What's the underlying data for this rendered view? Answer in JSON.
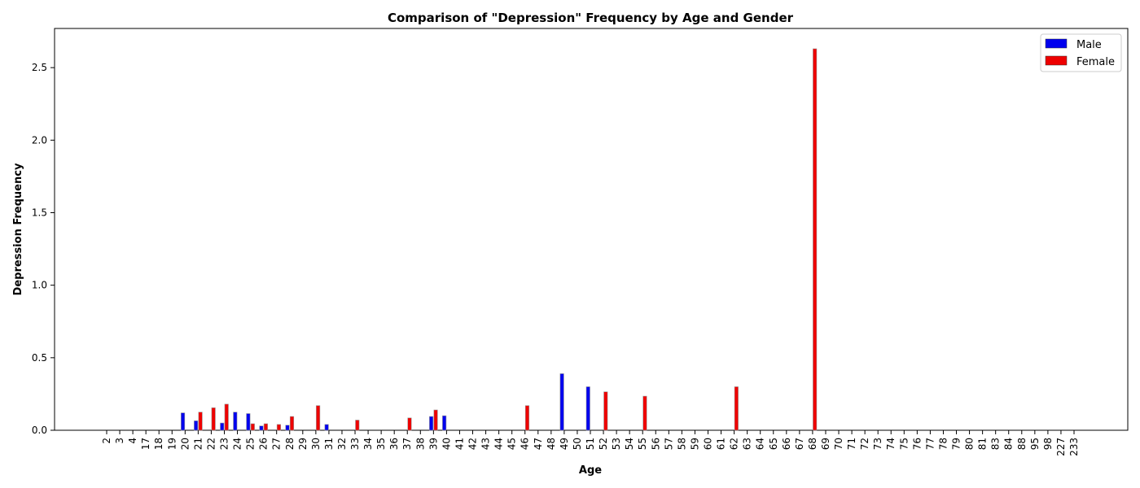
{
  "chart_data": {
    "type": "bar",
    "title": "Comparison of \"Depression\" Frequency by Age and Gender",
    "xlabel": "Age",
    "ylabel": "Depression Frequency",
    "ylim": [
      0,
      2.77
    ],
    "yticks": [
      "0.0",
      "0.5",
      "1.0",
      "1.5",
      "2.0",
      "2.5"
    ],
    "grid": false,
    "legend_position": "top-right",
    "categories": [
      "2",
      "3",
      "4",
      "17",
      "18",
      "19",
      "20",
      "21",
      "22",
      "23",
      "24",
      "25",
      "26",
      "27",
      "28",
      "29",
      "30",
      "31",
      "32",
      "33",
      "34",
      "35",
      "36",
      "37",
      "38",
      "39",
      "40",
      "41",
      "42",
      "43",
      "44",
      "45",
      "46",
      "47",
      "48",
      "49",
      "50",
      "51",
      "52",
      "53",
      "54",
      "55",
      "56",
      "57",
      "58",
      "59",
      "60",
      "61",
      "62",
      "63",
      "64",
      "65",
      "66",
      "67",
      "68",
      "69",
      "70",
      "71",
      "72",
      "73",
      "74",
      "75",
      "76",
      "77",
      "78",
      "79",
      "80",
      "81",
      "83",
      "84",
      "88",
      "95",
      "98",
      "227",
      "233"
    ],
    "series": [
      {
        "name": "Male",
        "color": "#0000ee",
        "values": [
          0,
          0,
          0,
          0,
          0,
          0,
          0.12,
          0.065,
          0,
          0.05,
          0.125,
          0.115,
          0.03,
          0,
          0.035,
          0,
          0,
          0.04,
          0,
          0,
          0,
          0,
          0,
          0,
          0,
          0.095,
          0.1,
          0,
          0,
          0,
          0,
          0,
          0,
          0,
          0,
          0.39,
          0,
          0.3,
          0,
          0,
          0,
          0,
          0,
          0,
          0,
          0,
          0,
          0,
          0,
          0,
          0,
          0,
          0,
          0,
          0,
          0,
          0,
          0,
          0,
          0,
          0,
          0,
          0,
          0,
          0,
          0,
          0,
          0,
          0,
          0,
          0,
          0,
          0,
          0,
          0
        ]
      },
      {
        "name": "Female",
        "color": "#ee0000",
        "values": [
          0,
          0,
          0,
          0,
          0,
          0,
          0,
          0.125,
          0.155,
          0.18,
          0,
          0.045,
          0.045,
          0.04,
          0.095,
          0,
          0.17,
          0,
          0,
          0.07,
          0,
          0,
          0,
          0.085,
          0,
          0.14,
          0,
          0,
          0,
          0,
          0,
          0,
          0.17,
          0,
          0,
          0,
          0,
          0,
          0.265,
          0,
          0,
          0.235,
          0,
          0,
          0,
          0,
          0,
          0,
          0.3,
          0,
          0,
          0,
          0,
          0,
          2.63,
          0,
          0,
          0,
          0,
          0,
          0,
          0,
          0,
          0,
          0,
          0,
          0,
          0,
          0,
          0,
          0,
          0,
          0,
          0,
          0
        ]
      }
    ]
  }
}
